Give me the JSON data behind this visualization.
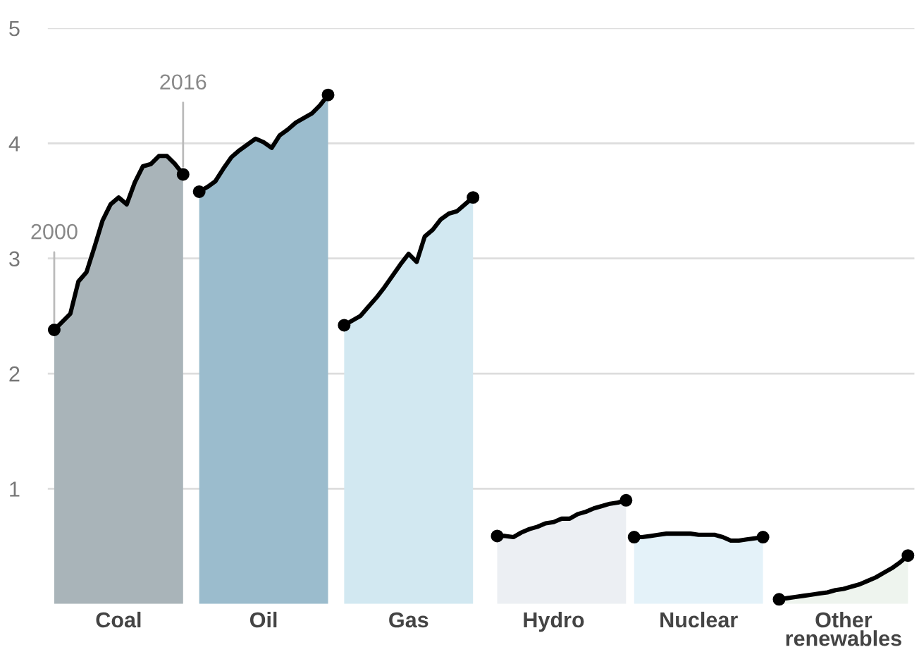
{
  "chart_data": {
    "type": "area",
    "ylim": [
      0,
      5
    ],
    "yticks": [
      1,
      2,
      3,
      4,
      5
    ],
    "grid": "y",
    "annotations": [
      {
        "text": "2000",
        "y": 2.38
      },
      {
        "text": "2016",
        "y": 3.73
      }
    ],
    "categories": [
      null,
      null,
      null,
      null,
      null,
      null,
      null,
      null,
      "Coal",
      null,
      null,
      null,
      null,
      null,
      null,
      null,
      null,
      null,
      null,
      null,
      null,
      null,
      null,
      null,
      null,
      null,
      "Oil",
      null,
      null,
      null,
      null,
      null,
      null,
      null,
      null,
      null,
      null,
      null,
      null,
      null,
      null,
      null,
      null,
      null,
      "Gas",
      null,
      null,
      null,
      null,
      null,
      null,
      null,
      null,
      null,
      null,
      null,
      null,
      null,
      null,
      null,
      null,
      null,
      "Hydro",
      null,
      null,
      null,
      null,
      null,
      null,
      null,
      null,
      null,
      null,
      null,
      null,
      null,
      null,
      null,
      null,
      null,
      "Nuclear",
      null,
      null,
      null,
      null,
      null,
      null,
      null,
      null,
      null,
      null,
      null,
      null,
      null,
      null,
      null,
      null,
      null,
      "Other renewables",
      null,
      null,
      null,
      null,
      null,
      null,
      null,
      null
    ],
    "series": [
      {
        "color": "#a9b4b9",
        "values": [
          2.38,
          2.45,
          2.52,
          2.8,
          2.88,
          3.1,
          3.33,
          3.47,
          3.53,
          3.47,
          3.66,
          3.8,
          3.82,
          3.89,
          3.89,
          3.82,
          3.73,
          null,
          null,
          null,
          null,
          null,
          null,
          null,
          null,
          null,
          null,
          null,
          null,
          null,
          null,
          null,
          null,
          null,
          null,
          null,
          null,
          null,
          null,
          null,
          null,
          null,
          null,
          null,
          null,
          null,
          null,
          null,
          null,
          null,
          null,
          null,
          null,
          null,
          null,
          null,
          null,
          null,
          null,
          null,
          null,
          null,
          null,
          null,
          null,
          null,
          null,
          null,
          null,
          null,
          null,
          null,
          null,
          null,
          null,
          null,
          null,
          null,
          null,
          null,
          null,
          null,
          null,
          null,
          null,
          null,
          null,
          null,
          null,
          null,
          null,
          null,
          null,
          null,
          null,
          null,
          null,
          null,
          null,
          null,
          null,
          null,
          null,
          null,
          null,
          null,
          null
        ]
      },
      {
        "color": "#9bbccd",
        "values": [
          null,
          null,
          null,
          null,
          null,
          null,
          null,
          null,
          null,
          null,
          null,
          null,
          null,
          null,
          null,
          null,
          null,
          null,
          3.58,
          3.62,
          3.67,
          3.78,
          3.88,
          3.94,
          3.99,
          4.04,
          4.01,
          3.96,
          4.07,
          4.12,
          4.18,
          4.22,
          4.26,
          4.33,
          4.42,
          null,
          null,
          null,
          null,
          null,
          null,
          null,
          null,
          null,
          null,
          null,
          null,
          null,
          null,
          null,
          null,
          null,
          null,
          null,
          null,
          null,
          null,
          null,
          null,
          null,
          null,
          null,
          null,
          null,
          null,
          null,
          null,
          null,
          null,
          null,
          null,
          null,
          null,
          null,
          null,
          null,
          null,
          null,
          null,
          null,
          null,
          null,
          null,
          null,
          null,
          null,
          null,
          null,
          null,
          null,
          null,
          null,
          null,
          null,
          null,
          null,
          null,
          null,
          null,
          null,
          null,
          null,
          null,
          null,
          null,
          null,
          null
        ]
      },
      {
        "color": "#d2e8f1",
        "values": [
          null,
          null,
          null,
          null,
          null,
          null,
          null,
          null,
          null,
          null,
          null,
          null,
          null,
          null,
          null,
          null,
          null,
          null,
          null,
          null,
          null,
          null,
          null,
          null,
          null,
          null,
          null,
          null,
          null,
          null,
          null,
          null,
          null,
          null,
          null,
          null,
          2.42,
          2.46,
          2.5,
          2.58,
          2.66,
          2.75,
          2.85,
          2.95,
          3.04,
          2.97,
          3.19,
          3.25,
          3.34,
          3.39,
          3.41,
          3.47,
          3.53,
          null,
          null,
          null,
          null,
          null,
          null,
          null,
          null,
          null,
          null,
          null,
          null,
          null,
          null,
          null,
          null,
          null,
          null,
          null,
          null,
          null,
          null,
          null,
          null,
          null,
          null,
          null,
          null,
          null,
          null,
          null,
          null,
          null,
          null,
          null,
          null,
          null,
          null,
          null,
          null,
          null,
          null,
          null,
          null,
          null,
          null,
          null,
          null,
          null,
          null,
          null,
          null,
          null,
          null
        ]
      },
      {
        "color": "#eceff3",
        "values": [
          null,
          null,
          null,
          null,
          null,
          null,
          null,
          null,
          null,
          null,
          null,
          null,
          null,
          null,
          null,
          null,
          null,
          null,
          null,
          null,
          null,
          null,
          null,
          null,
          null,
          null,
          null,
          null,
          null,
          null,
          null,
          null,
          null,
          null,
          null,
          null,
          null,
          null,
          null,
          null,
          null,
          null,
          null,
          null,
          null,
          null,
          null,
          null,
          null,
          null,
          null,
          null,
          null,
          null,
          null,
          0.59,
          0.59,
          0.58,
          0.62,
          0.65,
          0.67,
          0.7,
          0.71,
          0.74,
          0.74,
          0.78,
          0.8,
          0.83,
          0.85,
          0.87,
          0.88,
          0.9,
          null,
          null,
          null,
          null,
          null,
          null,
          null,
          null,
          null,
          null,
          null,
          null,
          null,
          null,
          null,
          null,
          null,
          null,
          null,
          null,
          null,
          null,
          null,
          null,
          null,
          null,
          null,
          null,
          null,
          null,
          null,
          null,
          null,
          null,
          null
        ]
      },
      {
        "color": "#e4f2f9",
        "values": [
          null,
          null,
          null,
          null,
          null,
          null,
          null,
          null,
          null,
          null,
          null,
          null,
          null,
          null,
          null,
          null,
          null,
          null,
          null,
          null,
          null,
          null,
          null,
          null,
          null,
          null,
          null,
          null,
          null,
          null,
          null,
          null,
          null,
          null,
          null,
          null,
          null,
          null,
          null,
          null,
          null,
          null,
          null,
          null,
          null,
          null,
          null,
          null,
          null,
          null,
          null,
          null,
          null,
          null,
          null,
          null,
          null,
          null,
          null,
          null,
          null,
          null,
          null,
          null,
          null,
          null,
          null,
          null,
          null,
          null,
          null,
          null,
          0.58,
          0.58,
          0.59,
          0.6,
          0.61,
          0.61,
          0.61,
          0.61,
          0.6,
          0.6,
          0.6,
          0.58,
          0.55,
          0.55,
          0.56,
          0.57,
          0.58,
          null,
          null,
          null,
          null,
          null,
          null,
          null,
          null,
          null,
          null,
          null,
          null,
          null,
          null,
          null,
          null,
          null,
          null
        ]
      },
      {
        "color": "#eef4ee",
        "values": [
          null,
          null,
          null,
          null,
          null,
          null,
          null,
          null,
          null,
          null,
          null,
          null,
          null,
          null,
          null,
          null,
          null,
          null,
          null,
          null,
          null,
          null,
          null,
          null,
          null,
          null,
          null,
          null,
          null,
          null,
          null,
          null,
          null,
          null,
          null,
          null,
          null,
          null,
          null,
          null,
          null,
          null,
          null,
          null,
          null,
          null,
          null,
          null,
          null,
          null,
          null,
          null,
          null,
          null,
          null,
          null,
          null,
          null,
          null,
          null,
          null,
          null,
          null,
          null,
          null,
          null,
          null,
          null,
          null,
          null,
          null,
          null,
          null,
          null,
          null,
          null,
          null,
          null,
          null,
          null,
          null,
          null,
          null,
          null,
          null,
          null,
          null,
          null,
          null,
          null,
          0.04,
          0.05,
          0.06,
          0.07,
          0.08,
          0.09,
          0.1,
          0.12,
          0.13,
          0.15,
          0.17,
          0.2,
          0.23,
          0.27,
          0.31,
          0.36,
          0.42
        ]
      }
    ]
  }
}
